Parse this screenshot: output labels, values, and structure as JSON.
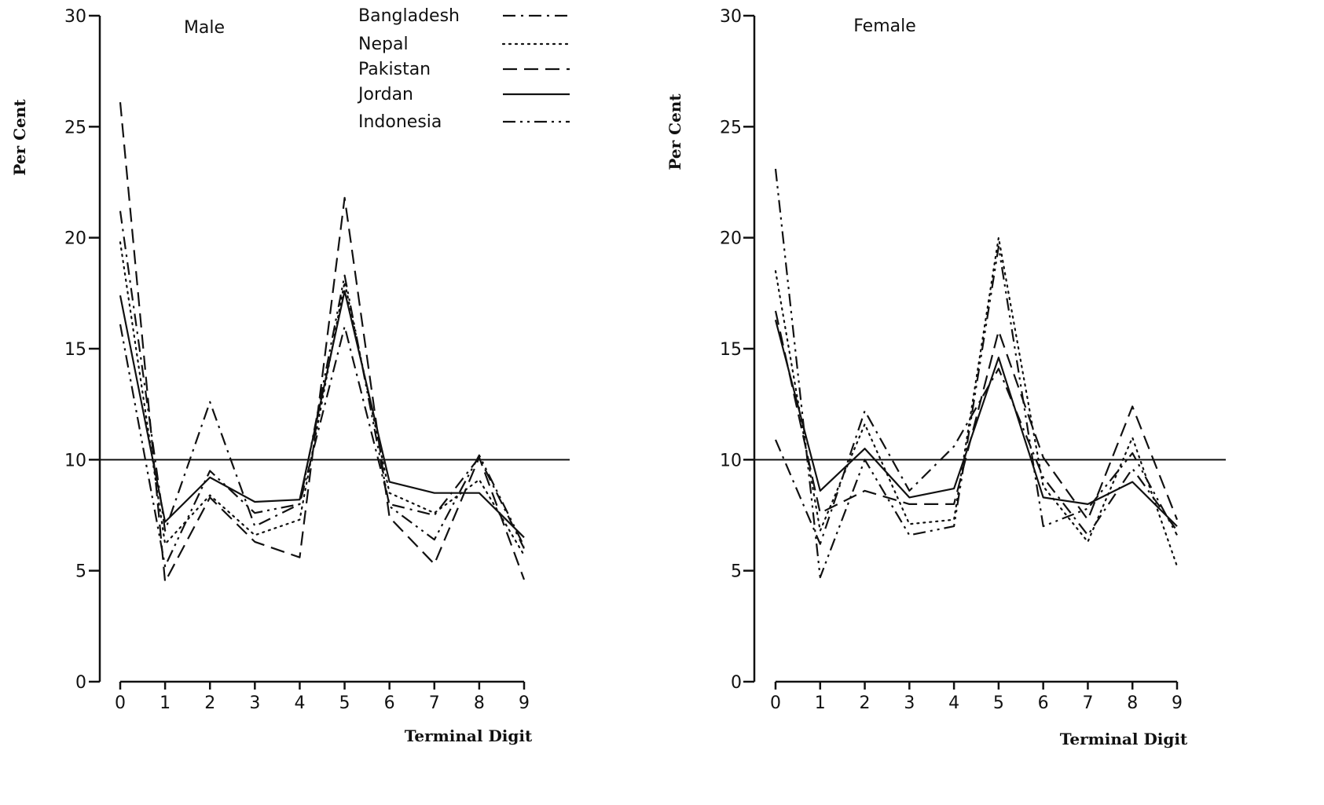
{
  "chart_data": [
    {
      "type": "line",
      "title": "Male",
      "xlabel": "Terminal Digit",
      "ylabel": "Per Cent",
      "x": [
        0,
        1,
        2,
        3,
        4,
        5,
        6,
        7,
        8,
        9
      ],
      "x_ticks": [
        "0",
        "1",
        "2",
        "3",
        "4",
        "5",
        "6",
        "7",
        "8",
        "9"
      ],
      "y_ticks": [
        "0",
        "5",
        "10",
        "15",
        "20",
        "25",
        "30"
      ],
      "ylim": [
        0,
        30
      ],
      "reference_line": 10,
      "legend": "top-center",
      "series": [
        {
          "name": "Bangladesh",
          "style": "dash-dot",
          "values": [
            21.2,
            6.8,
            12.6,
            7.0,
            8.0,
            16.0,
            8.0,
            7.5,
            10.1,
            6.0
          ]
        },
        {
          "name": "Nepal",
          "style": "dotted",
          "values": [
            19.8,
            6.2,
            8.4,
            6.6,
            7.3,
            18.0,
            8.5,
            7.6,
            9.1,
            5.7
          ]
        },
        {
          "name": "Pakistan",
          "style": "dashed",
          "values": [
            26.1,
            4.5,
            8.3,
            6.3,
            5.6,
            21.8,
            7.4,
            5.3,
            10.1,
            4.6
          ]
        },
        {
          "name": "Jordan",
          "style": "solid",
          "values": [
            17.4,
            7.2,
            9.2,
            8.1,
            8.2,
            17.6,
            9.0,
            8.5,
            8.5,
            6.5
          ]
        },
        {
          "name": "Indonesia",
          "style": "dash-dot-dot",
          "values": [
            16.1,
            5.2,
            9.5,
            7.6,
            8.0,
            18.3,
            7.9,
            6.4,
            10.2,
            6.1
          ]
        }
      ]
    },
    {
      "type": "line",
      "title": "Female",
      "xlabel": "Terminal Digit",
      "ylabel": "Per Cent",
      "x": [
        0,
        1,
        2,
        3,
        4,
        5,
        6,
        7,
        8,
        9
      ],
      "x_ticks": [
        "0",
        "1",
        "2",
        "3",
        "4",
        "5",
        "6",
        "7",
        "8",
        "9"
      ],
      "y_ticks": [
        "0",
        "5",
        "10",
        "15",
        "20",
        "25",
        "30"
      ],
      "ylim": [
        0,
        30
      ],
      "reference_line": 10,
      "series": [
        {
          "name": "Bangladesh",
          "style": "dash-dot",
          "values": [
            10.9,
            6.2,
            12.2,
            8.6,
            10.6,
            14.1,
            9.2,
            6.6,
            9.6,
            6.8
          ]
        },
        {
          "name": "Nepal",
          "style": "dotted",
          "values": [
            18.5,
            6.8,
            11.6,
            7.1,
            7.3,
            20.0,
            8.8,
            6.3,
            11.0,
            5.2
          ]
        },
        {
          "name": "Pakistan",
          "style": "dashed",
          "values": [
            16.7,
            7.6,
            8.6,
            8.0,
            8.0,
            15.8,
            10.1,
            7.3,
            12.4,
            7.3
          ]
        },
        {
          "name": "Jordan",
          "style": "solid",
          "values": [
            16.3,
            8.6,
            10.5,
            8.3,
            8.7,
            14.6,
            8.3,
            8.0,
            9.0,
            7.0
          ]
        },
        {
          "name": "Indonesia",
          "style": "dash-dot-dot",
          "values": [
            23.1,
            4.7,
            10.0,
            6.6,
            7.0,
            19.6,
            7.0,
            7.8,
            10.3,
            6.6
          ]
        }
      ]
    }
  ]
}
